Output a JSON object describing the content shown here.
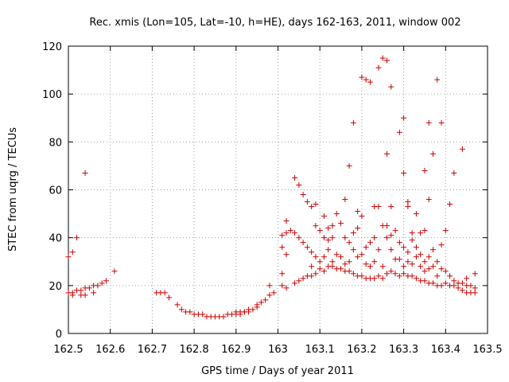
{
  "chart_data": {
    "type": "scatter",
    "title": "Rec. xmis (Lon=105, Lat=-10, h=HE), days 162-163, 2011, window 002",
    "xlabel": "GPS time / Days of year 2011",
    "ylabel": "STEC from uqrg / TECUs",
    "xlim": [
      162.5,
      163.5
    ],
    "ylim": [
      0,
      120
    ],
    "xticks": [
      162.5,
      162.6,
      162.7,
      162.8,
      162.9,
      163.0,
      163.1,
      163.2,
      163.3,
      163.4,
      163.5
    ],
    "xtick_labels": [
      "162.5",
      "162.6",
      "162.7",
      "162.8",
      "162.9",
      "163",
      "163.1",
      "163.2",
      "163.3",
      "163.4",
      "163.5"
    ],
    "yticks": [
      0,
      20,
      40,
      60,
      80,
      100,
      120
    ],
    "ytick_labels": [
      "0",
      "20",
      "40",
      "60",
      "80",
      "100",
      "120"
    ],
    "grid": true,
    "marker": "+",
    "color": "#cc0000",
    "points": [
      [
        162.5,
        32
      ],
      [
        162.51,
        34
      ],
      [
        162.52,
        40
      ],
      [
        162.54,
        67
      ],
      [
        162.5,
        17
      ],
      [
        162.51,
        17
      ],
      [
        162.52,
        18
      ],
      [
        162.53,
        18
      ],
      [
        162.54,
        19
      ],
      [
        162.55,
        19
      ],
      [
        162.56,
        20
      ],
      [
        162.57,
        20
      ],
      [
        162.58,
        21
      ],
      [
        162.59,
        22
      ],
      [
        162.61,
        26
      ],
      [
        162.51,
        16
      ],
      [
        162.53,
        16
      ],
      [
        162.54,
        16
      ],
      [
        162.56,
        17
      ],
      [
        162.71,
        17
      ],
      [
        162.72,
        17
      ],
      [
        162.73,
        17
      ],
      [
        162.74,
        15
      ],
      [
        162.76,
        12
      ],
      [
        162.77,
        10
      ],
      [
        162.78,
        9
      ],
      [
        162.79,
        9
      ],
      [
        162.8,
        8
      ],
      [
        162.81,
        8
      ],
      [
        162.82,
        8
      ],
      [
        162.83,
        7
      ],
      [
        162.84,
        7
      ],
      [
        162.85,
        7
      ],
      [
        162.86,
        7
      ],
      [
        162.87,
        7
      ],
      [
        162.88,
        8
      ],
      [
        162.89,
        8
      ],
      [
        162.9,
        8
      ],
      [
        162.9,
        9
      ],
      [
        162.91,
        8
      ],
      [
        162.91,
        9
      ],
      [
        162.92,
        9
      ],
      [
        162.92,
        9
      ],
      [
        162.93,
        9
      ],
      [
        162.93,
        10
      ],
      [
        162.94,
        10
      ],
      [
        162.95,
        11
      ],
      [
        162.95,
        12
      ],
      [
        162.96,
        13
      ],
      [
        162.97,
        14
      ],
      [
        162.98,
        16
      ],
      [
        162.98,
        20
      ],
      [
        162.99,
        17
      ],
      [
        163.01,
        41
      ],
      [
        163.01,
        36
      ],
      [
        163.01,
        25
      ],
      [
        163.01,
        20
      ],
      [
        163.02,
        42
      ],
      [
        163.02,
        47
      ],
      [
        163.02,
        33
      ],
      [
        163.02,
        19
      ],
      [
        163.03,
        43
      ],
      [
        163.04,
        65
      ],
      [
        163.04,
        42
      ],
      [
        163.04,
        21
      ],
      [
        163.05,
        62
      ],
      [
        163.05,
        40
      ],
      [
        163.05,
        22
      ],
      [
        163.06,
        58
      ],
      [
        163.06,
        38
      ],
      [
        163.06,
        23
      ],
      [
        163.07,
        55
      ],
      [
        163.07,
        36
      ],
      [
        163.07,
        24
      ],
      [
        163.08,
        53
      ],
      [
        163.08,
        34
      ],
      [
        163.08,
        28
      ],
      [
        163.08,
        24
      ],
      [
        163.09,
        54
      ],
      [
        163.09,
        45
      ],
      [
        163.09,
        32
      ],
      [
        163.09,
        25
      ],
      [
        163.1,
        43
      ],
      [
        163.1,
        30
      ],
      [
        163.1,
        27
      ],
      [
        163.11,
        49
      ],
      [
        163.11,
        40
      ],
      [
        163.11,
        32
      ],
      [
        163.11,
        26
      ],
      [
        163.12,
        44
      ],
      [
        163.12,
        39
      ],
      [
        163.12,
        35
      ],
      [
        163.12,
        28
      ],
      [
        163.13,
        45
      ],
      [
        163.13,
        40
      ],
      [
        163.13,
        30
      ],
      [
        163.13,
        28
      ],
      [
        163.14,
        50
      ],
      [
        163.14,
        33
      ],
      [
        163.14,
        27
      ],
      [
        163.15,
        46
      ],
      [
        163.15,
        32
      ],
      [
        163.15,
        27
      ],
      [
        163.16,
        56
      ],
      [
        163.16,
        40
      ],
      [
        163.16,
        29
      ],
      [
        163.16,
        26
      ],
      [
        163.17,
        70
      ],
      [
        163.17,
        38
      ],
      [
        163.17,
        30
      ],
      [
        163.17,
        26
      ],
      [
        163.18,
        88
      ],
      [
        163.18,
        42
      ],
      [
        163.18,
        35
      ],
      [
        163.18,
        25
      ],
      [
        163.19,
        51
      ],
      [
        163.19,
        44
      ],
      [
        163.19,
        32
      ],
      [
        163.19,
        24
      ],
      [
        163.2,
        107
      ],
      [
        163.2,
        49
      ],
      [
        163.2,
        33
      ],
      [
        163.2,
        24
      ],
      [
        163.21,
        106
      ],
      [
        163.21,
        36
      ],
      [
        163.21,
        29
      ],
      [
        163.21,
        23
      ],
      [
        163.22,
        105
      ],
      [
        163.22,
        38
      ],
      [
        163.22,
        28
      ],
      [
        163.22,
        23
      ],
      [
        163.23,
        53
      ],
      [
        163.23,
        40
      ],
      [
        163.23,
        30
      ],
      [
        163.23,
        23
      ],
      [
        163.24,
        111
      ],
      [
        163.24,
        53
      ],
      [
        163.24,
        35
      ],
      [
        163.24,
        24
      ],
      [
        163.25,
        115
      ],
      [
        163.25,
        45
      ],
      [
        163.25,
        28
      ],
      [
        163.25,
        23
      ],
      [
        163.26,
        114
      ],
      [
        163.26,
        75
      ],
      [
        163.26,
        45
      ],
      [
        163.26,
        40
      ],
      [
        163.26,
        25
      ],
      [
        163.27,
        103
      ],
      [
        163.27,
        53
      ],
      [
        163.27,
        41
      ],
      [
        163.27,
        35
      ],
      [
        163.27,
        26
      ],
      [
        163.28,
        43
      ],
      [
        163.28,
        31
      ],
      [
        163.28,
        25
      ],
      [
        163.29,
        84
      ],
      [
        163.29,
        38
      ],
      [
        163.29,
        31
      ],
      [
        163.29,
        24
      ],
      [
        163.3,
        90
      ],
      [
        163.3,
        67
      ],
      [
        163.3,
        36
      ],
      [
        163.3,
        28
      ],
      [
        163.3,
        25
      ],
      [
        163.31,
        55
      ],
      [
        163.31,
        53
      ],
      [
        163.31,
        34
      ],
      [
        163.31,
        30
      ],
      [
        163.31,
        24
      ],
      [
        163.32,
        42
      ],
      [
        163.32,
        39
      ],
      [
        163.32,
        29
      ],
      [
        163.32,
        24
      ],
      [
        163.33,
        50
      ],
      [
        163.33,
        36
      ],
      [
        163.33,
        32
      ],
      [
        163.33,
        23
      ],
      [
        163.34,
        42
      ],
      [
        163.34,
        33
      ],
      [
        163.34,
        28
      ],
      [
        163.34,
        22
      ],
      [
        163.35,
        68
      ],
      [
        163.35,
        43
      ],
      [
        163.35,
        30
      ],
      [
        163.35,
        26
      ],
      [
        163.35,
        22
      ],
      [
        163.36,
        88
      ],
      [
        163.36,
        56
      ],
      [
        163.36,
        32
      ],
      [
        163.36,
        27
      ],
      [
        163.36,
        21
      ],
      [
        163.37,
        75
      ],
      [
        163.37,
        35
      ],
      [
        163.37,
        28
      ],
      [
        163.37,
        21
      ],
      [
        163.38,
        106
      ],
      [
        163.38,
        30
      ],
      [
        163.38,
        24
      ],
      [
        163.38,
        20
      ],
      [
        163.39,
        88
      ],
      [
        163.39,
        37
      ],
      [
        163.39,
        27
      ],
      [
        163.39,
        20
      ],
      [
        163.4,
        43
      ],
      [
        163.4,
        26
      ],
      [
        163.4,
        21
      ],
      [
        163.41,
        54
      ],
      [
        163.41,
        24
      ],
      [
        163.41,
        20
      ],
      [
        163.42,
        67
      ],
      [
        163.42,
        22
      ],
      [
        163.42,
        20
      ],
      [
        163.43,
        21
      ],
      [
        163.43,
        19
      ],
      [
        163.44,
        77
      ],
      [
        163.44,
        21
      ],
      [
        163.44,
        18
      ],
      [
        163.45,
        23
      ],
      [
        163.45,
        20
      ],
      [
        163.45,
        17
      ],
      [
        163.46,
        20
      ],
      [
        163.46,
        17
      ],
      [
        163.47,
        25
      ],
      [
        163.47,
        19
      ],
      [
        163.47,
        17
      ]
    ]
  }
}
